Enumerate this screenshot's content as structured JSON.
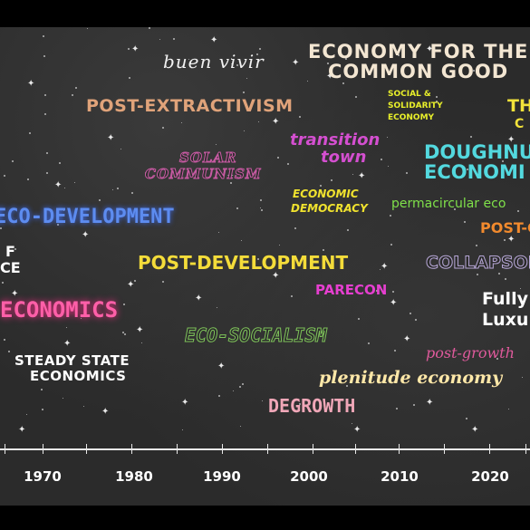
{
  "terms": {
    "buen_vivir": "buen vivir",
    "economy_common_good_1": "ECONOMY FOR THE",
    "economy_common_good_2": "COMMON GOOD",
    "post_extractivism": "POST-EXTRACTIVISM",
    "social_solidarity_1": "SOCIAL &",
    "social_solidarity_2": "SOLIDARITY",
    "social_solidarity_3": "ECONOMY",
    "the_fragment_1": "TH",
    "the_fragment_2": "C",
    "solar_communism_1": "SOLAR",
    "solar_communism_2": "COMMUNISM",
    "transition_town_1": "transition",
    "transition_town_2": "town",
    "doughnut_1": "DOUGHNU",
    "doughnut_2": "ECONOMI",
    "economic_democracy_1": "ECONOMIC",
    "economic_democracy_2": "DEMOCRACY",
    "permacircular": "permacircular eco",
    "eco_development": "ECO-DEVELOPMENT",
    "post_g": "POST-G",
    "left_fragment_1": "F",
    "left_fragment_2": "CE",
    "post_development": "POST-DEVELOPMENT",
    "collapsology": "COLLAPSOLO",
    "parecon": "PARECON",
    "economics_fragment": "ECONOMICS",
    "fully_1": "Fully",
    "fully_2": "Luxu",
    "eco_socialism": "ECO-SOCIALISM",
    "steady_state_1": "STEADY STATE",
    "steady_state_2": "ECONOMICS",
    "post_growth": "post-growth",
    "plenitude": "plenitude economy",
    "degrowth": "DEGROWTH"
  },
  "timeline": {
    "years": [
      "1970",
      "1980",
      "1990",
      "2000",
      "2010",
      "2020"
    ]
  }
}
